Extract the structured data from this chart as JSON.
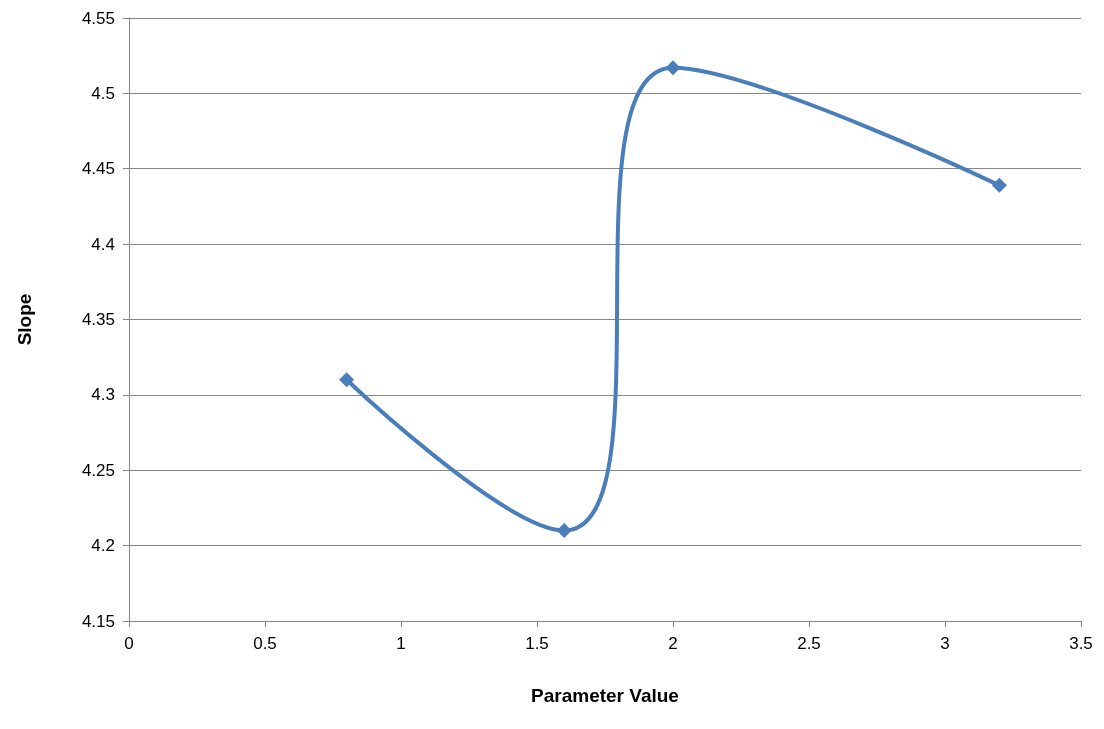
{
  "chart_data": {
    "type": "line",
    "xlabel": "Parameter Value",
    "ylabel": "Slope",
    "x": [
      0.8,
      1.6,
      2.0,
      3.2
    ],
    "series": [
      {
        "color": "#4a7ebb",
        "values": [
          4.31,
          4.21,
          4.517,
          4.439
        ]
      }
    ],
    "xlim": [
      0,
      3.5
    ],
    "xticks": [
      0,
      0.5,
      1,
      1.5,
      2,
      2.5,
      3,
      3.5
    ],
    "ylim": [
      4.15,
      4.55
    ],
    "yticks": [
      4.15,
      4.2,
      4.25,
      4.3,
      4.35,
      4.4,
      4.45,
      4.5,
      4.55
    ],
    "grid": "y",
    "marker": "diamond",
    "line_style": "solid"
  }
}
